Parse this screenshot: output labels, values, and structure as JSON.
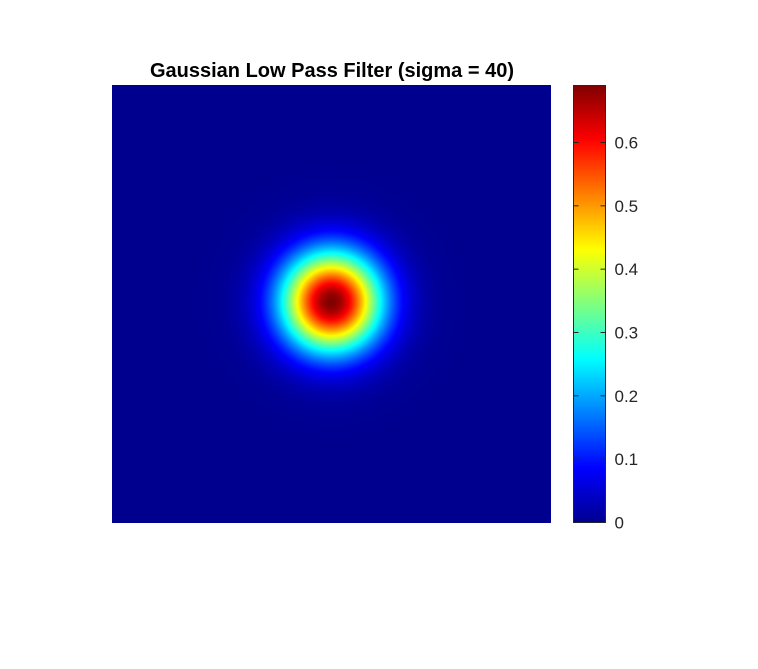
{
  "chart_data": {
    "type": "heatmap",
    "title": "Gaussian Low Pass Filter (sigma = 40)",
    "xlabel": "",
    "ylabel": "",
    "axes_visible": false,
    "grid": false,
    "colormap": "jet",
    "colormap_stops": [
      "#00008f",
      "#0000ff",
      "#00ffff",
      "#ffff00",
      "#ff0000",
      "#800000"
    ],
    "image": {
      "function": "gaussian",
      "sigma": 40,
      "peak": 0.69,
      "center": [
        0.5,
        0.495
      ],
      "extent": 500
    },
    "colorbar": {
      "location": "right",
      "clim": [
        0,
        0.69
      ],
      "ticks": [
        0,
        0.1,
        0.2,
        0.3,
        0.4,
        0.5,
        0.6
      ],
      "tick_labels": [
        "0",
        "0.1",
        "0.2",
        "0.3",
        "0.4",
        "0.5",
        "0.6"
      ]
    }
  }
}
